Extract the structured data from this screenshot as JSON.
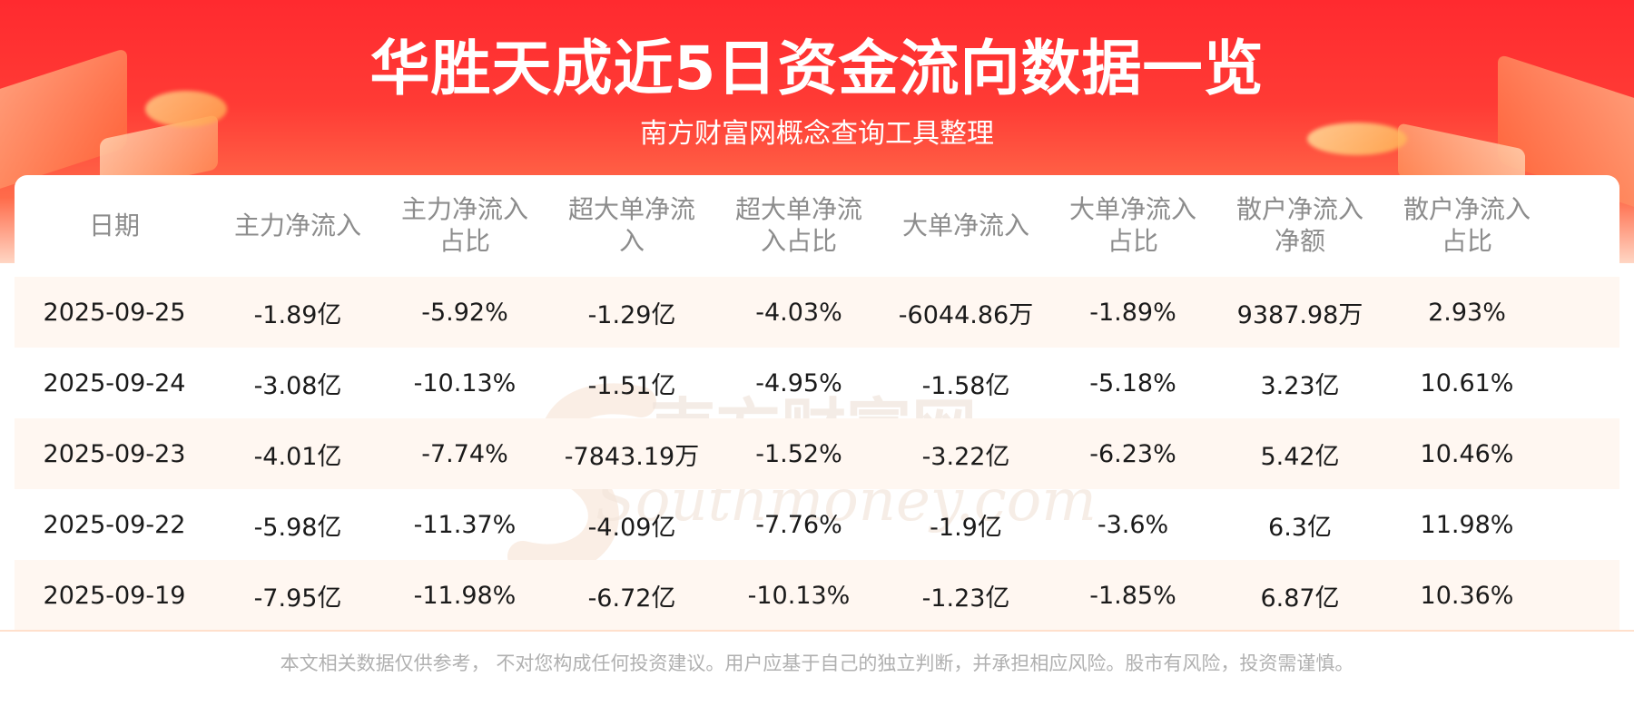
{
  "title": "华胜天成近5日资金流向数据一览",
  "subtitle": "南方财富网概念查询工具整理",
  "watermark": {
    "cn": "南方财富网",
    "en": "Southmoney.com"
  },
  "colors": {
    "banner": "#ff2a2f",
    "row_alt": "#fff7f1",
    "header_text": "#8c8c8c"
  },
  "table": {
    "headers": [
      "日期",
      "主力净流入",
      "主力净流入\n占比",
      "超大单净流\n入",
      "超大单净流\n入占比",
      "大单净流入",
      "大单净流入\n占比",
      "散户净流入\n净额",
      "散户净流入\n占比"
    ],
    "rows": [
      [
        "2025-09-25",
        "-1.89亿",
        "-5.92%",
        "-1.29亿",
        "-4.03%",
        "-6044.86万",
        "-1.89%",
        "9387.98万",
        "2.93%"
      ],
      [
        "2025-09-24",
        "-3.08亿",
        "-10.13%",
        "-1.51亿",
        "-4.95%",
        "-1.58亿",
        "-5.18%",
        "3.23亿",
        "10.61%"
      ],
      [
        "2025-09-23",
        "-4.01亿",
        "-7.74%",
        "-7843.19万",
        "-1.52%",
        "-3.22亿",
        "-6.23%",
        "5.42亿",
        "10.46%"
      ],
      [
        "2025-09-22",
        "-5.98亿",
        "-11.37%",
        "-4.09亿",
        "-7.76%",
        "-1.9亿",
        "-3.6%",
        "6.3亿",
        "11.98%"
      ],
      [
        "2025-09-19",
        "-7.95亿",
        "-11.98%",
        "-6.72亿",
        "-10.13%",
        "-1.23亿",
        "-1.85%",
        "6.87亿",
        "10.36%"
      ]
    ]
  },
  "footer": "本文相关数据仅供参考， 不对您构成任何投资建议。用户应基于自己的独立判断，并承担相应风险。股市有风险，投资需谨慎。"
}
